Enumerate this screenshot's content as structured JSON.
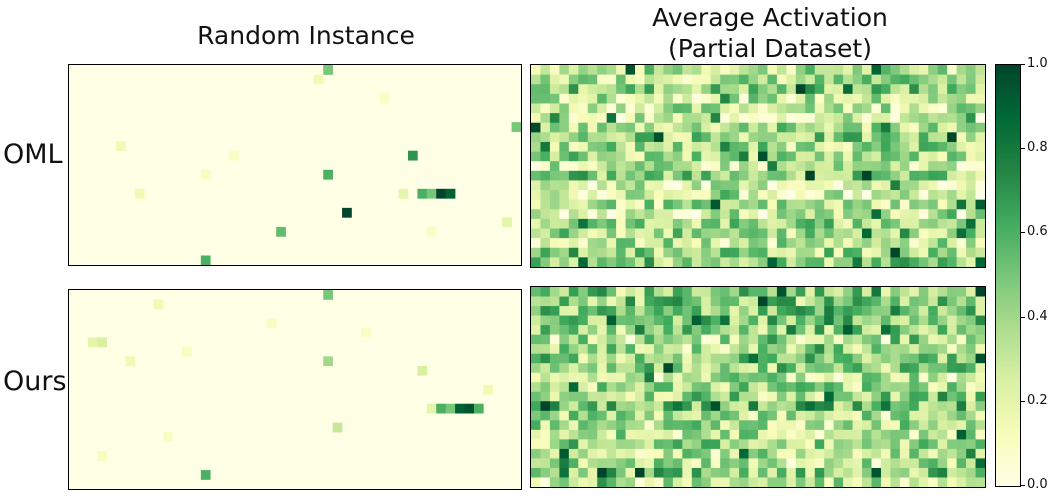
{
  "chart_data": {
    "type": "heatmap",
    "title_random": "Random Instance",
    "title_avg_line1": "Average Activation",
    "title_avg_line2": "(Partial Dataset)",
    "rows": [
      "OML",
      "Ours"
    ],
    "colorbar": {
      "range": [
        0.0,
        1.0
      ],
      "ticks": [
        "1.0",
        "0.8",
        "0.6",
        "0.4",
        "0.2",
        "0.0"
      ],
      "colormap": [
        "#ffffe5",
        "#f7fcb9",
        "#d9f0a3",
        "#addd8e",
        "#78c679",
        "#41ab5d",
        "#238443",
        "#006837",
        "#004529"
      ]
    },
    "grid": {
      "cols": 48,
      "rows": 21
    },
    "sparse_cells": {
      "OML": [
        [
          27,
          0,
          0.5
        ],
        [
          26,
          1,
          0.15
        ],
        [
          33,
          3,
          0.1
        ],
        [
          47,
          6,
          0.5
        ],
        [
          5,
          8,
          0.15
        ],
        [
          36,
          9,
          0.7
        ],
        [
          17,
          9,
          0.1
        ],
        [
          27,
          11,
          0.6
        ],
        [
          14,
          11,
          0.1
        ],
        [
          35,
          13,
          0.2
        ],
        [
          37,
          13,
          0.6
        ],
        [
          38,
          13,
          0.5
        ],
        [
          39,
          13,
          1.0
        ],
        [
          40,
          13,
          0.9
        ],
        [
          7,
          13,
          0.15
        ],
        [
          29,
          15,
          1.0
        ],
        [
          46,
          16,
          0.2
        ],
        [
          22,
          17,
          0.55
        ],
        [
          38,
          17,
          0.1
        ],
        [
          14,
          20,
          0.6
        ]
      ],
      "Ours": [
        [
          27,
          0,
          0.5
        ],
        [
          9,
          1,
          0.15
        ],
        [
          21,
          3,
          0.1
        ],
        [
          2,
          5,
          0.2
        ],
        [
          3,
          5,
          0.25
        ],
        [
          31,
          4,
          0.1
        ],
        [
          12,
          6,
          0.1
        ],
        [
          6,
          7,
          0.15
        ],
        [
          27,
          7,
          0.4
        ],
        [
          37,
          8,
          0.25
        ],
        [
          38,
          12,
          0.2
        ],
        [
          39,
          12,
          0.6
        ],
        [
          40,
          12,
          0.5
        ],
        [
          41,
          12,
          0.9
        ],
        [
          42,
          12,
          0.95
        ],
        [
          43,
          12,
          0.6
        ],
        [
          28,
          14,
          0.3
        ],
        [
          10,
          15,
          0.1
        ],
        [
          3,
          17,
          0.1
        ],
        [
          14,
          19,
          0.6
        ],
        [
          44,
          10,
          0.15
        ]
      ]
    },
    "dense_stats": {
      "OML": {
        "mean": 0.33,
        "spread": 0.28,
        "seed": 7
      },
      "Ours": {
        "mean": 0.42,
        "spread": 0.3,
        "seed": 19
      }
    }
  }
}
